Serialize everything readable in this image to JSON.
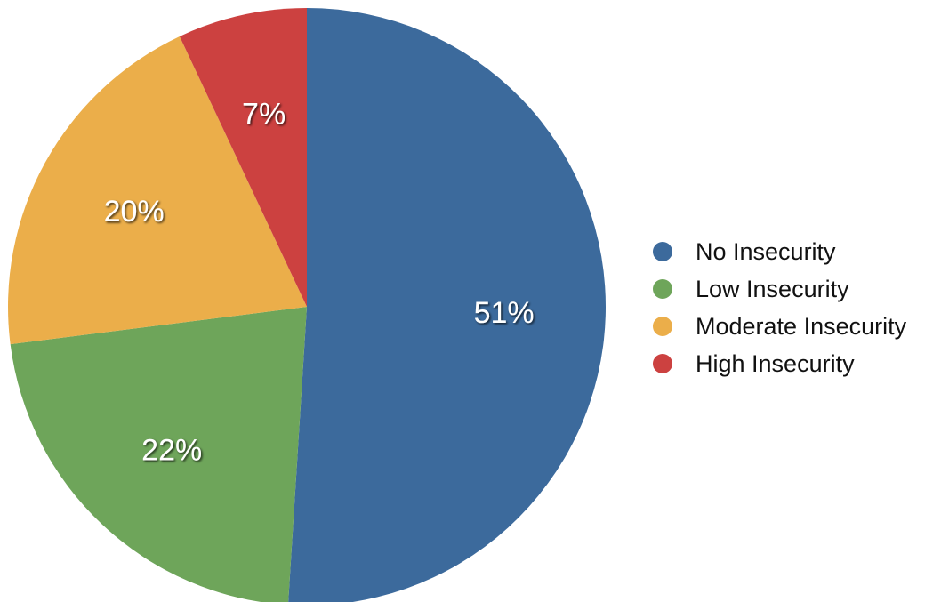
{
  "chart_data": {
    "type": "pie",
    "categories": [
      "No Insecurity",
      "Low Insecurity",
      "Moderate Insecurity",
      "High Insecurity"
    ],
    "values": [
      51,
      22,
      20,
      7
    ],
    "data_labels": [
      "51%",
      "22%",
      "20%",
      "7%"
    ],
    "colors": [
      "#3c6a9c",
      "#6ea55a",
      "#ebae4a",
      "#cc4140"
    ],
    "legend": {
      "position": "right",
      "entries": [
        "No Insecurity",
        "Low Insecurity",
        "Moderate Insecurity",
        "High Insecurity"
      ]
    },
    "start": "12 o'clock",
    "direction": "clockwise"
  }
}
